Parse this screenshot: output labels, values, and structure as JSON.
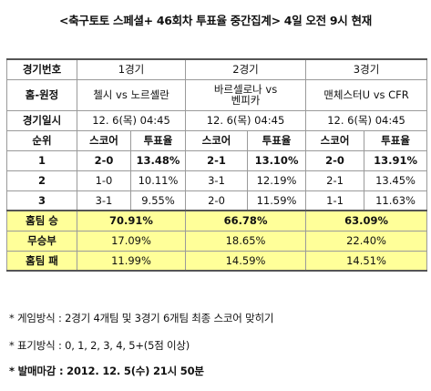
{
  "title": "<축구토토 스페셜+ 46회차 투표율 중간집계> 4일 오전 9시 현재",
  "table": {
    "header_label": "경기번호",
    "home_away_label": "홈-원정",
    "date_label": "경기일시",
    "rank_label": "순위",
    "score_label": "스코어",
    "rate_label": "투표율",
    "matches": [
      {
        "number": "1경기",
        "teams_line1": "첼시 vs 노르셸란",
        "teams_line2": "",
        "date": "12. 6(목) 04:45"
      },
      {
        "number": "2경기",
        "teams_line1": "바르셀로나 vs",
        "teams_line2": "벤피카",
        "date": "12. 6(목) 04:45"
      },
      {
        "number": "3경기",
        "teams_line1": "맨체스터U vs CFR",
        "teams_line2": "",
        "date": "12. 6(목) 04:45"
      }
    ],
    "rows": [
      {
        "rank": "1",
        "cells": [
          [
            "2-0",
            "13.48%"
          ],
          [
            "2-1",
            "13.10%"
          ],
          [
            "2-0",
            "13.91%"
          ]
        ]
      },
      {
        "rank": "2",
        "cells": [
          [
            "1-0",
            "10.11%"
          ],
          [
            "3-1",
            "12.19%"
          ],
          [
            "2-1",
            "13.45%"
          ]
        ]
      },
      {
        "rank": "3",
        "cells": [
          [
            "3-1",
            "9.55%"
          ],
          [
            "2-0",
            "11.59%"
          ],
          [
            "1-1",
            "11.63%"
          ]
        ]
      }
    ],
    "outcomes": [
      {
        "label": "홈팀 승",
        "values": [
          "70.91%",
          "66.78%",
          "63.09%"
        ]
      },
      {
        "label": "무승부",
        "values": [
          "17.09%",
          "18.65%",
          "22.40%"
        ]
      },
      {
        "label": "홈팀 패",
        "values": [
          "11.99%",
          "14.59%",
          "14.51%"
        ]
      }
    ]
  },
  "notes": {
    "game_method": "* 게임방식 : 2경기 4개팀 및 3경기 6개팀 최종 스코어 맞히기",
    "notation": "* 표기방식 : 0, 1, 2, 3, 4, 5+(5점 이상)",
    "deadline": "* 발매마감 : 2012. 12. 5(수) 21시 50분"
  }
}
